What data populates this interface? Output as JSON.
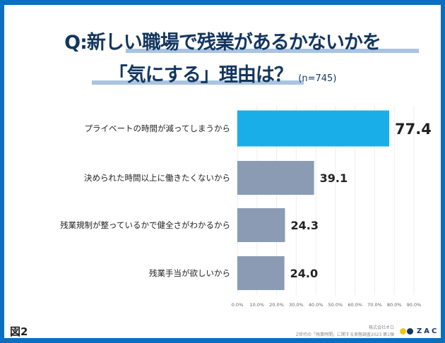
{
  "title_line1": "Q:新しい職場で残業があるかないかを",
  "title_line2": "「気にする」理由は？",
  "sample_size": "(n=745)",
  "figure_label": "図2",
  "source_company": "株式会社オロ",
  "source_report": "Z世代の「残業時間」に関する実態調査2023 第1弾",
  "logo_text": "ZAC",
  "colors": {
    "frame": "#0b6fbf",
    "highlight_bar": "#1aaee8",
    "other_bars": "#8a9bb3",
    "title": "#13365f",
    "logo_yellow": "#f2c318",
    "logo_navy": "#13365f"
  },
  "chart_data": {
    "type": "bar",
    "orientation": "horizontal",
    "categories": [
      "プライベートの時間が減ってしまうから",
      "決められた時間以上に働きたくないから",
      "残業規制が整っているかで健全さがわかるから",
      "残業手当が欲しいから"
    ],
    "values": [
      77.4,
      39.1,
      24.3,
      24.0
    ],
    "data_labels": [
      "77.4",
      "39.1",
      "24.3",
      "24.0"
    ],
    "xlim": [
      0,
      90
    ],
    "x_ticks": [
      "0.0%",
      "10.0%",
      "20.0%",
      "30.0%",
      "40.0%",
      "50.0%",
      "60.0%",
      "70.0%",
      "80.0%",
      "90.0%"
    ],
    "grid": true
  }
}
